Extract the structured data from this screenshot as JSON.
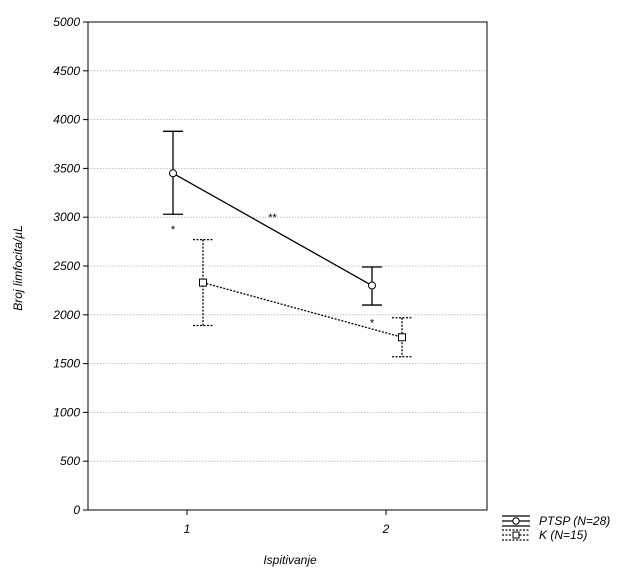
{
  "chart_data": {
    "type": "line",
    "title": "",
    "xlabel": "Ispitivanje",
    "ylabel": "Broj limfocita/µL",
    "ylim": [
      0,
      5000
    ],
    "yticks": [
      0,
      500,
      1000,
      1500,
      2000,
      2500,
      3000,
      3500,
      4000,
      4500,
      5000
    ],
    "categories": [
      "1",
      "2"
    ],
    "grid": true,
    "legend_position": "bottom-right, outside plot",
    "series": [
      {
        "name": "PTSP (N=28)",
        "line_style": "solid",
        "marker": "circle",
        "values": [
          3450,
          2300
        ],
        "error_low": [
          3030,
          2100
        ],
        "error_high": [
          3880,
          2490
        ]
      },
      {
        "name": "K (N=15)",
        "line_style": "dotted",
        "marker": "square",
        "values": [
          2330,
          1770
        ],
        "error_low": [
          1890,
          1570
        ],
        "error_high": [
          2770,
          1970
        ]
      }
    ],
    "annotations": [
      {
        "text": "*",
        "x": 1,
        "y": 2880
      },
      {
        "text": "**",
        "x": 1.5,
        "y": 3000
      },
      {
        "text": "*",
        "x": 2,
        "y": 1920
      }
    ]
  }
}
